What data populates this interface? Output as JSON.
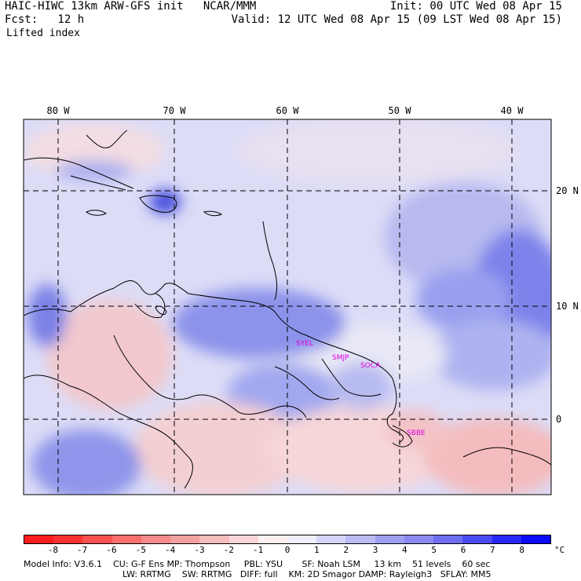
{
  "header": {
    "title": "HAIC-HIWC 13km ARW-GFS init   NCAR/MMM",
    "forecast": "Fcst:   12 h",
    "field": "Lifted index",
    "init": "Init: 00 UTC Wed 08 Apr 15",
    "valid": "Valid: 12 UTC Wed 08 Apr 15 (09 LST Wed 08 Apr 15)"
  },
  "map": {
    "lon_labels": [
      "80 W",
      "70 W",
      "60 W",
      "50 W",
      "40 W"
    ],
    "lat_labels": [
      "20 N",
      "10 N",
      "0"
    ],
    "stations": [
      "SYEL",
      "SMJP",
      "SOCA",
      "SBBE"
    ],
    "colors": {
      "water_base": "#dcdcf7",
      "land_base": "#f5d6d9",
      "coast": "#000000",
      "grid": "#000000",
      "station": "#e000e0"
    }
  },
  "colorbar": {
    "labels": [
      "-8",
      "-7",
      "-6",
      "-5",
      "-4",
      "-3",
      "-2",
      "-1",
      "0",
      "1",
      "2",
      "3",
      "4",
      "5",
      "6",
      "7",
      "8"
    ],
    "unit": "°C",
    "colors": [
      "#ff1e1e",
      "#ff3232",
      "#ff5050",
      "#fb6e6e",
      "#f58a8a",
      "#f2a0a0",
      "#f5bcbc",
      "#f8d6d6",
      "#fdf0f0",
      "#f0f0fd",
      "#d6d6f8",
      "#bcbcf5",
      "#a0a0f2",
      "#8a8af0",
      "#6e6ef0",
      "#4b4bf5",
      "#2828fa",
      "#0a0aff"
    ]
  },
  "footer": {
    "line1": "Model Info: V3.6.1    CU: G-F Ens MP: Thompson     PBL: YSU       SF: Noah LSM     13 km    51 levels    60 sec",
    "line2": "LW: RRTMG    SW: RRTMG   DIFF: full    KM: 2D Smagor DAMP: Rayleigh3   SFLAY: MM5"
  }
}
